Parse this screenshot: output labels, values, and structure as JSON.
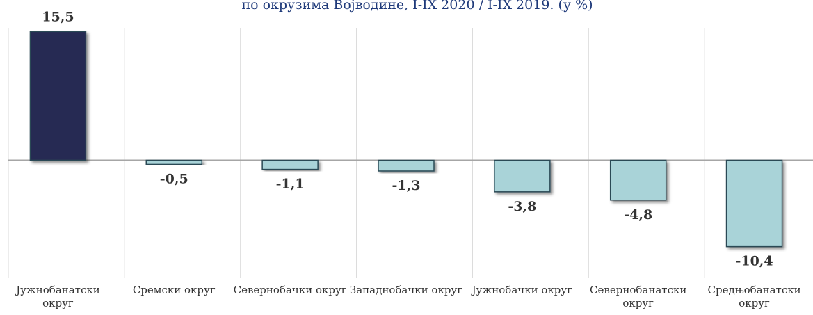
{
  "chart_data": {
    "type": "bar",
    "title": "по окрузима Војводине, I-IX 2020 / I-IX 2019. (у %)",
    "categories": [
      "Јужнобанатски округ",
      "Сремски  округ",
      "Севернобачки округ",
      "Западнобачки округ",
      "Јужнобачки округ",
      "Севернобанатски округ",
      "Средњобанатски округ"
    ],
    "values": [
      15.5,
      -0.5,
      -1.1,
      -1.3,
      -3.8,
      -4.8,
      -10.4
    ],
    "value_labels": [
      "15,5",
      "-0,5",
      "-1,1",
      "-1,3",
      "-3,8",
      "-4,8",
      "-10,4"
    ],
    "colors": [
      "#262a52",
      "#a9d3d8",
      "#a9d3d8",
      "#a9d3d8",
      "#a9d3d8",
      "#a9d3d8",
      "#a9d3d8"
    ],
    "ylim": [
      -14.2,
      19.3
    ]
  }
}
